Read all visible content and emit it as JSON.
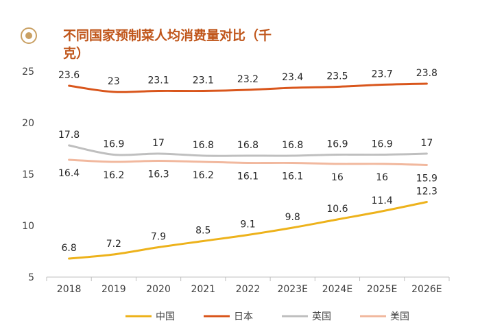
{
  "chart_data": {
    "type": "line",
    "title_line1": "不同国家预制菜人均消费量对比（千",
    "title_line2": "克）",
    "categories": [
      "2018",
      "2019",
      "2020",
      "2021",
      "2022",
      "2023E",
      "2024E",
      "2025E",
      "2026E"
    ],
    "ylim": [
      5,
      25
    ],
    "yticks": [
      5,
      10,
      15,
      20,
      25
    ],
    "grid": false,
    "legend_position": "bottom",
    "series": [
      {
        "name": "中国",
        "color": "#EDB21B",
        "label_pos": "above",
        "values": [
          6.8,
          7.2,
          7.9,
          8.5,
          9.1,
          9.8,
          10.6,
          11.4,
          12.3
        ]
      },
      {
        "name": "日本",
        "color": "#D9561C",
        "label_pos": "above",
        "values": [
          23.6,
          23,
          23.1,
          23.1,
          23.2,
          23.4,
          23.5,
          23.7,
          23.8
        ]
      },
      {
        "name": "英国",
        "color": "#BFBFBF",
        "label_pos": "above",
        "values": [
          17.8,
          16.9,
          17,
          16.8,
          16.8,
          16.8,
          16.9,
          16.9,
          17
        ]
      },
      {
        "name": "美国",
        "color": "#F1B89E",
        "label_pos": "below",
        "values": [
          16.4,
          16.2,
          16.3,
          16.2,
          16.1,
          16.1,
          16,
          16,
          15.9
        ]
      }
    ]
  },
  "colors": {
    "title": "#C0561B",
    "icon": "#C9A063",
    "axis": "#BFBFBF"
  },
  "icon": "target-circle-icon"
}
